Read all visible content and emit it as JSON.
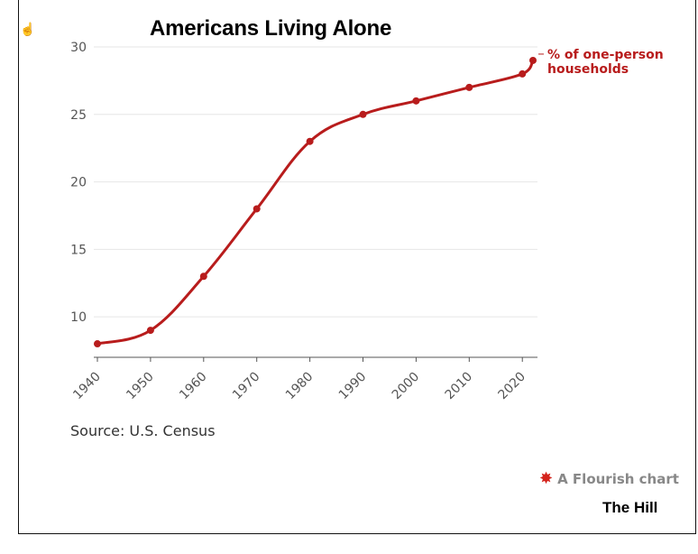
{
  "title": "Americans Living Alone",
  "source": "Source: U.S. Census",
  "footer": {
    "flourish": "A Flourish chart",
    "brand": "The Hill"
  },
  "icons": {
    "cursor": "hand-pointer-icon",
    "flourish": "flourish-star-icon"
  },
  "colors": {
    "line": "#b81c1c",
    "grid": "#e6e6e6",
    "axis": "#555555"
  },
  "chart_data": {
    "type": "line",
    "title": "Americans Living Alone",
    "xlabel": "",
    "ylabel": "",
    "x": [
      1940,
      1950,
      1960,
      1970,
      1980,
      1990,
      2000,
      2010,
      2020,
      2022
    ],
    "series": [
      {
        "name": "% of one-person households",
        "label_lines": [
          "% of one-person",
          "households"
        ],
        "values": [
          8,
          9,
          13,
          18,
          23,
          25,
          26,
          27,
          28,
          29
        ]
      }
    ],
    "xlim": [
      1940,
      2022
    ],
    "ylim": [
      7,
      30
    ],
    "xticks": [
      "1940",
      "1950",
      "1960",
      "1970",
      "1980",
      "1990",
      "2000",
      "2010",
      "2020"
    ],
    "yticks": [
      "10",
      "15",
      "20",
      "25",
      "30"
    ],
    "grid": true,
    "legend": "direct-label-right"
  }
}
